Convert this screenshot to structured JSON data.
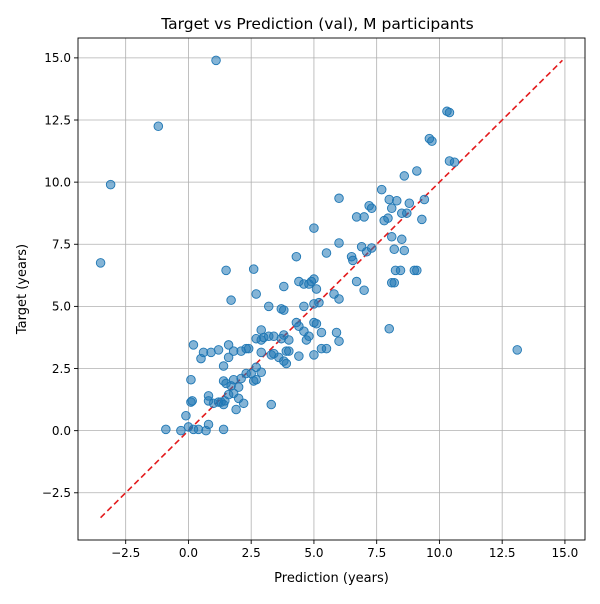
{
  "chart_data": {
    "type": "scatter",
    "title": "Target vs Prediction (val), M participants",
    "xlabel": "Prediction (years)",
    "ylabel": "Target (years)",
    "xlim": [
      -4.4,
      15.8
    ],
    "ylim": [
      -4.4,
      15.8
    ],
    "xticks": [
      -2.5,
      0.0,
      2.5,
      5.0,
      7.5,
      10.0,
      12.5,
      15.0
    ],
    "xtick_labels": [
      "−2.5",
      "0.0",
      "2.5",
      "5.0",
      "7.5",
      "10.0",
      "12.5",
      "15.0"
    ],
    "yticks": [
      -2.5,
      0.0,
      2.5,
      5.0,
      7.5,
      10.0,
      12.5,
      15.0
    ],
    "ytick_labels": [
      "−2.5",
      "0.0",
      "2.5",
      "5.0",
      "7.5",
      "10.0",
      "12.5",
      "15.0"
    ],
    "grid": true,
    "point_color": "#1f77b4",
    "reference_line": {
      "style": "dashed",
      "color": "#e31a1c",
      "from": [
        -3.5,
        -3.5
      ],
      "to": [
        14.9,
        14.9
      ]
    },
    "points": [
      [
        1.1,
        14.9
      ],
      [
        -1.2,
        12.25
      ],
      [
        -3.1,
        9.9
      ],
      [
        -3.5,
        6.75
      ],
      [
        13.1,
        3.25
      ],
      [
        10.3,
        12.85
      ],
      [
        10.4,
        12.8
      ],
      [
        9.6,
        11.75
      ],
      [
        9.7,
        11.65
      ],
      [
        10.4,
        10.85
      ],
      [
        10.6,
        10.8
      ],
      [
        8.6,
        10.25
      ],
      [
        9.1,
        10.45
      ],
      [
        7.7,
        9.7
      ],
      [
        6.0,
        9.35
      ],
      [
        8.0,
        9.3
      ],
      [
        8.3,
        9.25
      ],
      [
        8.8,
        9.15
      ],
      [
        9.4,
        9.3
      ],
      [
        7.2,
        9.05
      ],
      [
        7.3,
        8.95
      ],
      [
        8.1,
        8.95
      ],
      [
        8.5,
        8.75
      ],
      [
        8.7,
        8.75
      ],
      [
        6.7,
        8.6
      ],
      [
        7.0,
        8.6
      ],
      [
        7.8,
        8.45
      ],
      [
        7.95,
        8.55
      ],
      [
        9.3,
        8.5
      ],
      [
        5.0,
        8.15
      ],
      [
        8.1,
        7.8
      ],
      [
        8.5,
        7.7
      ],
      [
        6.0,
        7.55
      ],
      [
        7.3,
        7.35
      ],
      [
        6.9,
        7.4
      ],
      [
        7.1,
        7.2
      ],
      [
        8.2,
        7.3
      ],
      [
        8.6,
        7.25
      ],
      [
        5.5,
        7.15
      ],
      [
        4.3,
        7.0
      ],
      [
        6.5,
        7.0
      ],
      [
        6.55,
        6.85
      ],
      [
        8.25,
        6.45
      ],
      [
        8.45,
        6.45
      ],
      [
        9.0,
        6.45
      ],
      [
        9.1,
        6.45
      ],
      [
        1.5,
        6.45
      ],
      [
        2.6,
        6.5
      ],
      [
        5.0,
        6.1
      ],
      [
        6.7,
        6.0
      ],
      [
        4.4,
        6.0
      ],
      [
        4.6,
        5.9
      ],
      [
        4.8,
        5.9
      ],
      [
        4.9,
        6.0
      ],
      [
        8.1,
        5.95
      ],
      [
        8.2,
        5.95
      ],
      [
        5.1,
        5.7
      ],
      [
        7.0,
        5.65
      ],
      [
        3.8,
        5.8
      ],
      [
        5.8,
        5.5
      ],
      [
        2.7,
        5.5
      ],
      [
        6.0,
        5.3
      ],
      [
        1.7,
        5.25
      ],
      [
        5.2,
        5.15
      ],
      [
        5.0,
        5.1
      ],
      [
        4.6,
        5.0
      ],
      [
        3.2,
        5.0
      ],
      [
        3.7,
        4.9
      ],
      [
        3.8,
        4.85
      ],
      [
        5.0,
        4.35
      ],
      [
        5.1,
        4.3
      ],
      [
        4.3,
        4.35
      ],
      [
        4.4,
        4.2
      ],
      [
        8.0,
        4.1
      ],
      [
        4.6,
        4.0
      ],
      [
        5.3,
        3.95
      ],
      [
        5.9,
        3.95
      ],
      [
        2.9,
        4.05
      ],
      [
        3.2,
        3.8
      ],
      [
        3.4,
        3.8
      ],
      [
        3.8,
        3.85
      ],
      [
        3.7,
        3.7
      ],
      [
        4.8,
        3.8
      ],
      [
        6.0,
        3.6
      ],
      [
        4.0,
        3.65
      ],
      [
        2.7,
        3.7
      ],
      [
        2.9,
        3.65
      ],
      [
        3.0,
        3.75
      ],
      [
        1.6,
        3.45
      ],
      [
        4.7,
        3.65
      ],
      [
        0.2,
        3.45
      ],
      [
        5.3,
        3.3
      ],
      [
        5.5,
        3.3
      ],
      [
        2.3,
        3.3
      ],
      [
        2.4,
        3.3
      ],
      [
        1.2,
        3.25
      ],
      [
        0.6,
        3.15
      ],
      [
        0.9,
        3.15
      ],
      [
        1.8,
        3.2
      ],
      [
        2.1,
        3.2
      ],
      [
        2.9,
        3.15
      ],
      [
        3.4,
        3.1
      ],
      [
        3.9,
        3.2
      ],
      [
        4.0,
        3.2
      ],
      [
        5.0,
        3.05
      ],
      [
        4.4,
        3.0
      ],
      [
        3.3,
        3.05
      ],
      [
        3.6,
        2.95
      ],
      [
        0.5,
        2.9
      ],
      [
        1.6,
        2.95
      ],
      [
        3.8,
        2.8
      ],
      [
        3.9,
        2.7
      ],
      [
        1.4,
        2.6
      ],
      [
        2.7,
        2.55
      ],
      [
        2.3,
        2.3
      ],
      [
        2.5,
        2.3
      ],
      [
        2.9,
        2.35
      ],
      [
        2.1,
        2.1
      ],
      [
        2.6,
        2.0
      ],
      [
        2.7,
        2.05
      ],
      [
        1.4,
        2.0
      ],
      [
        1.8,
        2.05
      ],
      [
        1.5,
        1.9
      ],
      [
        0.1,
        2.05
      ],
      [
        1.7,
        1.8
      ],
      [
        2.0,
        1.75
      ],
      [
        1.8,
        1.5
      ],
      [
        1.6,
        1.45
      ],
      [
        2.0,
        1.3
      ],
      [
        0.8,
        1.4
      ],
      [
        0.8,
        1.2
      ],
      [
        1.0,
        1.1
      ],
      [
        1.2,
        1.15
      ],
      [
        1.3,
        1.15
      ],
      [
        1.45,
        1.2
      ],
      [
        1.4,
        1.05
      ],
      [
        2.2,
        1.1
      ],
      [
        3.3,
        1.05
      ],
      [
        0.1,
        1.15
      ],
      [
        0.15,
        1.2
      ],
      [
        1.9,
        0.85
      ],
      [
        -0.1,
        0.6
      ],
      [
        0.8,
        0.25
      ],
      [
        0.0,
        0.15
      ],
      [
        0.2,
        0.05
      ],
      [
        -0.3,
        0.0
      ],
      [
        0.4,
        0.05
      ],
      [
        -0.9,
        0.05
      ],
      [
        0.7,
        0.0
      ],
      [
        1.4,
        0.05
      ]
    ]
  }
}
